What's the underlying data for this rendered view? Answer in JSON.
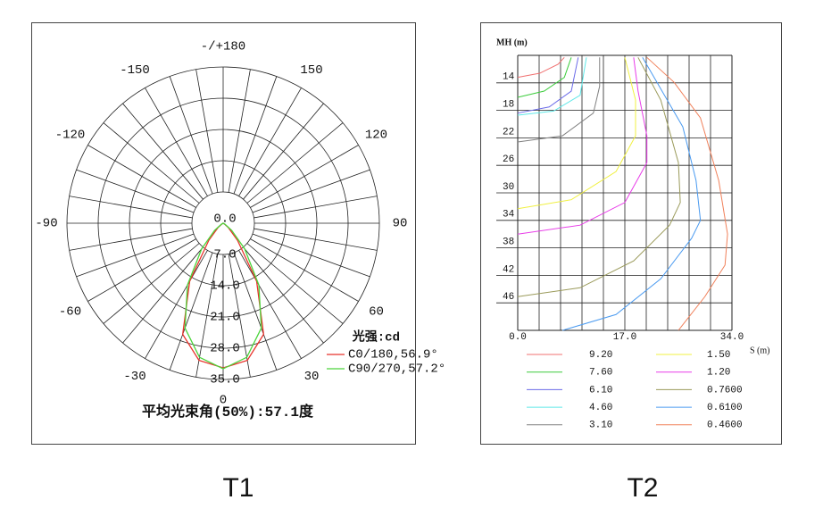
{
  "chart_data": [
    {
      "type": "polar",
      "thetaticks": [
        {
          "value": 180,
          "label": "-/+180"
        },
        -150,
        150,
        -120,
        120,
        -90,
        90,
        -60,
        60,
        -30,
        30,
        0
      ],
      "thetagrid": [
        -170,
        -160,
        -150,
        -140,
        -130,
        -120,
        -110,
        -100,
        -90,
        -80,
        -70,
        -60,
        -50,
        -40,
        -30,
        -20,
        -10,
        0,
        10,
        20,
        30,
        40,
        50,
        60,
        70,
        80,
        90,
        100,
        110,
        120,
        130,
        140,
        150,
        160,
        170,
        180
      ],
      "rlim": [
        0,
        35
      ],
      "rticks": [
        {
          "value": 0,
          "label": "0.0"
        },
        {
          "value": 7,
          "label": "7.0"
        },
        {
          "value": 14,
          "label": "14.0"
        },
        {
          "value": 21,
          "label": "21.0"
        },
        {
          "value": 28,
          "label": "28.0"
        },
        {
          "value": 35,
          "label": "35.0"
        }
      ],
      "theta": [
        -70,
        -60,
        -50,
        -40,
        -30,
        -20,
        -10,
        0,
        10,
        20,
        30,
        40,
        50,
        60,
        70
      ],
      "series": [
        {
          "name": "C0/180,56.9°",
          "color": "#e8322a",
          "values": [
            0,
            0.3,
            1.5,
            5.0,
            15.0,
            26.5,
            31.2,
            32.4,
            31.2,
            26.5,
            15.0,
            5.0,
            1.5,
            0.3,
            0
          ]
        },
        {
          "name": "C90/270,57.2°",
          "color": "#4cd43c",
          "values": [
            0,
            0.5,
            2.5,
            7.5,
            16.0,
            25.0,
            30.5,
            32.6,
            30.5,
            25.0,
            16.0,
            7.5,
            2.5,
            0.5,
            0
          ]
        }
      ],
      "legend_title": "光强:cd",
      "annotation": "平均光束角(50%):57.1度",
      "caption": "T1"
    },
    {
      "type": "contour",
      "ylabel": "MH (m)",
      "xlabel": "S (m)",
      "xlim": [
        0,
        34
      ],
      "xticks": [
        {
          "value": 0,
          "label": "0.0"
        },
        {
          "value": 17,
          "label": "17.0"
        },
        {
          "value": 34,
          "label": "34.0"
        }
      ],
      "xgrid": [
        3.4,
        6.8,
        10.2,
        13.6,
        17,
        20.4,
        23.8,
        27.2,
        30.6
      ],
      "ylim": [
        10,
        50
      ],
      "yticks": [
        14,
        18,
        22,
        26,
        30,
        34,
        38,
        42,
        46
      ],
      "series": [
        {
          "name": "9.20",
          "color": "#f07070",
          "x": [
            0,
            3.5,
            6.4,
            7.4
          ],
          "y": [
            13.2,
            12.6,
            11.3,
            10.3
          ]
        },
        {
          "name": "7.60",
          "color": "#3ccc3c",
          "x": [
            0,
            4.2,
            7.4,
            8.5
          ],
          "y": [
            16.1,
            15.2,
            13.2,
            10.3
          ]
        },
        {
          "name": "6.10",
          "color": "#6a6ae8",
          "x": [
            0,
            5,
            8.5,
            9.6
          ],
          "y": [
            18.4,
            17.5,
            15.2,
            10.3
          ]
        },
        {
          "name": "4.60",
          "color": "#5ee8e8",
          "x": [
            0,
            5.7,
            9.9,
            10.9
          ],
          "y": [
            18.7,
            18.1,
            15.8,
            10.3
          ]
        },
        {
          "name": "3.10",
          "color": "#808080",
          "x": [
            0,
            7.1,
            12,
            13,
            13
          ],
          "y": [
            22.6,
            21.7,
            18.4,
            14.5,
            10.3
          ]
        },
        {
          "name": "1.50",
          "color": "#f0f040",
          "x": [
            0,
            8.5,
            15.6,
            18.7,
            18.7,
            17
          ],
          "y": [
            32.3,
            31,
            26.9,
            21.7,
            16.5,
            10.3
          ]
        },
        {
          "name": "1.20",
          "color": "#e83ce8",
          "x": [
            0,
            9.9,
            17,
            20.5,
            20.5,
            19.1,
            18.4
          ],
          "y": [
            36,
            34.7,
            31.4,
            25.6,
            21.7,
            15.2,
            10.3
          ]
        },
        {
          "name": "0.7600",
          "color": "#9a9a5a",
          "x": [
            0,
            9.9,
            18.4,
            24.1,
            25.8,
            25.5,
            22.7,
            19.1
          ],
          "y": [
            45.1,
            43.8,
            39.9,
            34.7,
            31.4,
            25.6,
            16.5,
            10.3
          ]
        },
        {
          "name": "0.6100",
          "color": "#4a9af0",
          "x": [
            7.1,
            15.6,
            22.7,
            27.6,
            29,
            28.3,
            26.2,
            19.8
          ],
          "y": [
            50,
            47.7,
            42.5,
            36.6,
            34,
            28.2,
            20.4,
            10.3
          ]
        },
        {
          "name": "0.4600",
          "color": "#f0805a",
          "x": [
            25.5,
            29.7,
            32.9,
            33.3,
            31.9,
            29,
            24.8,
            20.5
          ],
          "y": [
            50,
            45.1,
            40.5,
            36,
            28.2,
            19.1,
            13.9,
            10.3
          ]
        }
      ],
      "caption": "T2"
    }
  ]
}
